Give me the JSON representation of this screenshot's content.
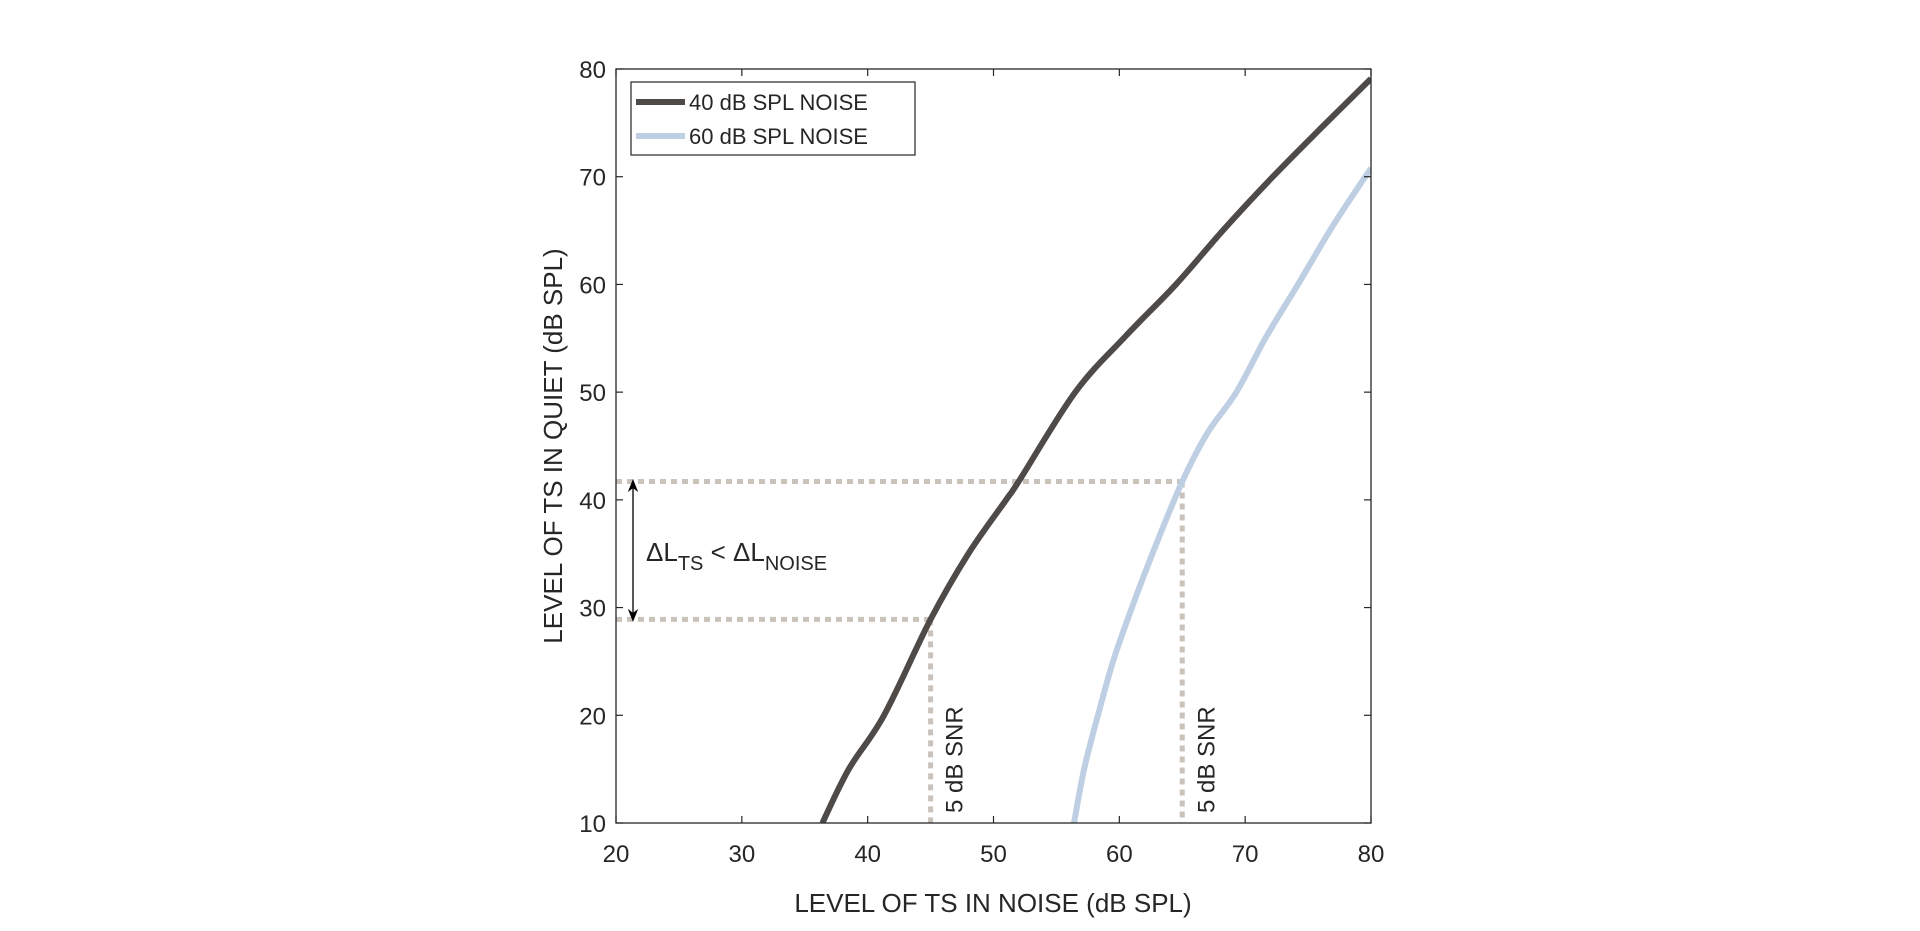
{
  "chart_data": {
    "type": "line",
    "title": "",
    "xlabel": "LEVEL OF TS IN NOISE (dB SPL)",
    "ylabel": "LEVEL OF TS IN QUIET (dB SPL)",
    "xlim": [
      20,
      80
    ],
    "ylim": [
      10,
      80
    ],
    "xticks": [
      20,
      30,
      40,
      50,
      60,
      70,
      80
    ],
    "yticks": [
      10,
      20,
      30,
      40,
      50,
      60,
      70,
      80
    ],
    "grid": false,
    "legend_position": "top-left",
    "series": [
      {
        "name": "40 dB SPL NOISE",
        "color": "#4d4a48",
        "x": [
          36.4,
          38.5,
          41.3,
          45.0,
          48.0,
          51.0,
          52.0,
          56.5,
          60.5,
          64.5,
          68.3,
          72.2,
          76.1,
          80.0
        ],
        "y": [
          10,
          15,
          20,
          28.9,
          35,
          40,
          41.7,
          50,
          55.2,
          60,
          65.1,
          70,
          74.6,
          79.1
        ]
      },
      {
        "name": "60 dB SPL NOISE",
        "color": "#bfcfe3",
        "x": [
          56.4,
          57.2,
          58.3,
          59.5,
          61.0,
          62.8,
          65.0,
          67.0,
          69.3,
          71.7,
          74.2,
          77.0,
          80.0
        ],
        "y": [
          10,
          15,
          20,
          25,
          30,
          35.5,
          41.7,
          46.2,
          50,
          55.2,
          60,
          65.5,
          70.8
        ]
      }
    ],
    "reference_lines": {
      "color": "#c9c3bc",
      "horizontal": [
        {
          "y": 41.7,
          "x_end": 65.0
        },
        {
          "y": 28.9,
          "x_end": 45.0
        }
      ],
      "vertical": [
        {
          "x": 45.0,
          "y_end": 28.9,
          "label": "5 dB SNR"
        },
        {
          "x": 65.0,
          "y_end": 41.7,
          "label": "5 dB SNR"
        }
      ]
    },
    "annotation": {
      "delta": "ΔL",
      "sub1": "TS",
      "op": " < ",
      "sub2": "NOISE",
      "arrow_from": 28.9,
      "arrow_to": 41.7
    }
  }
}
